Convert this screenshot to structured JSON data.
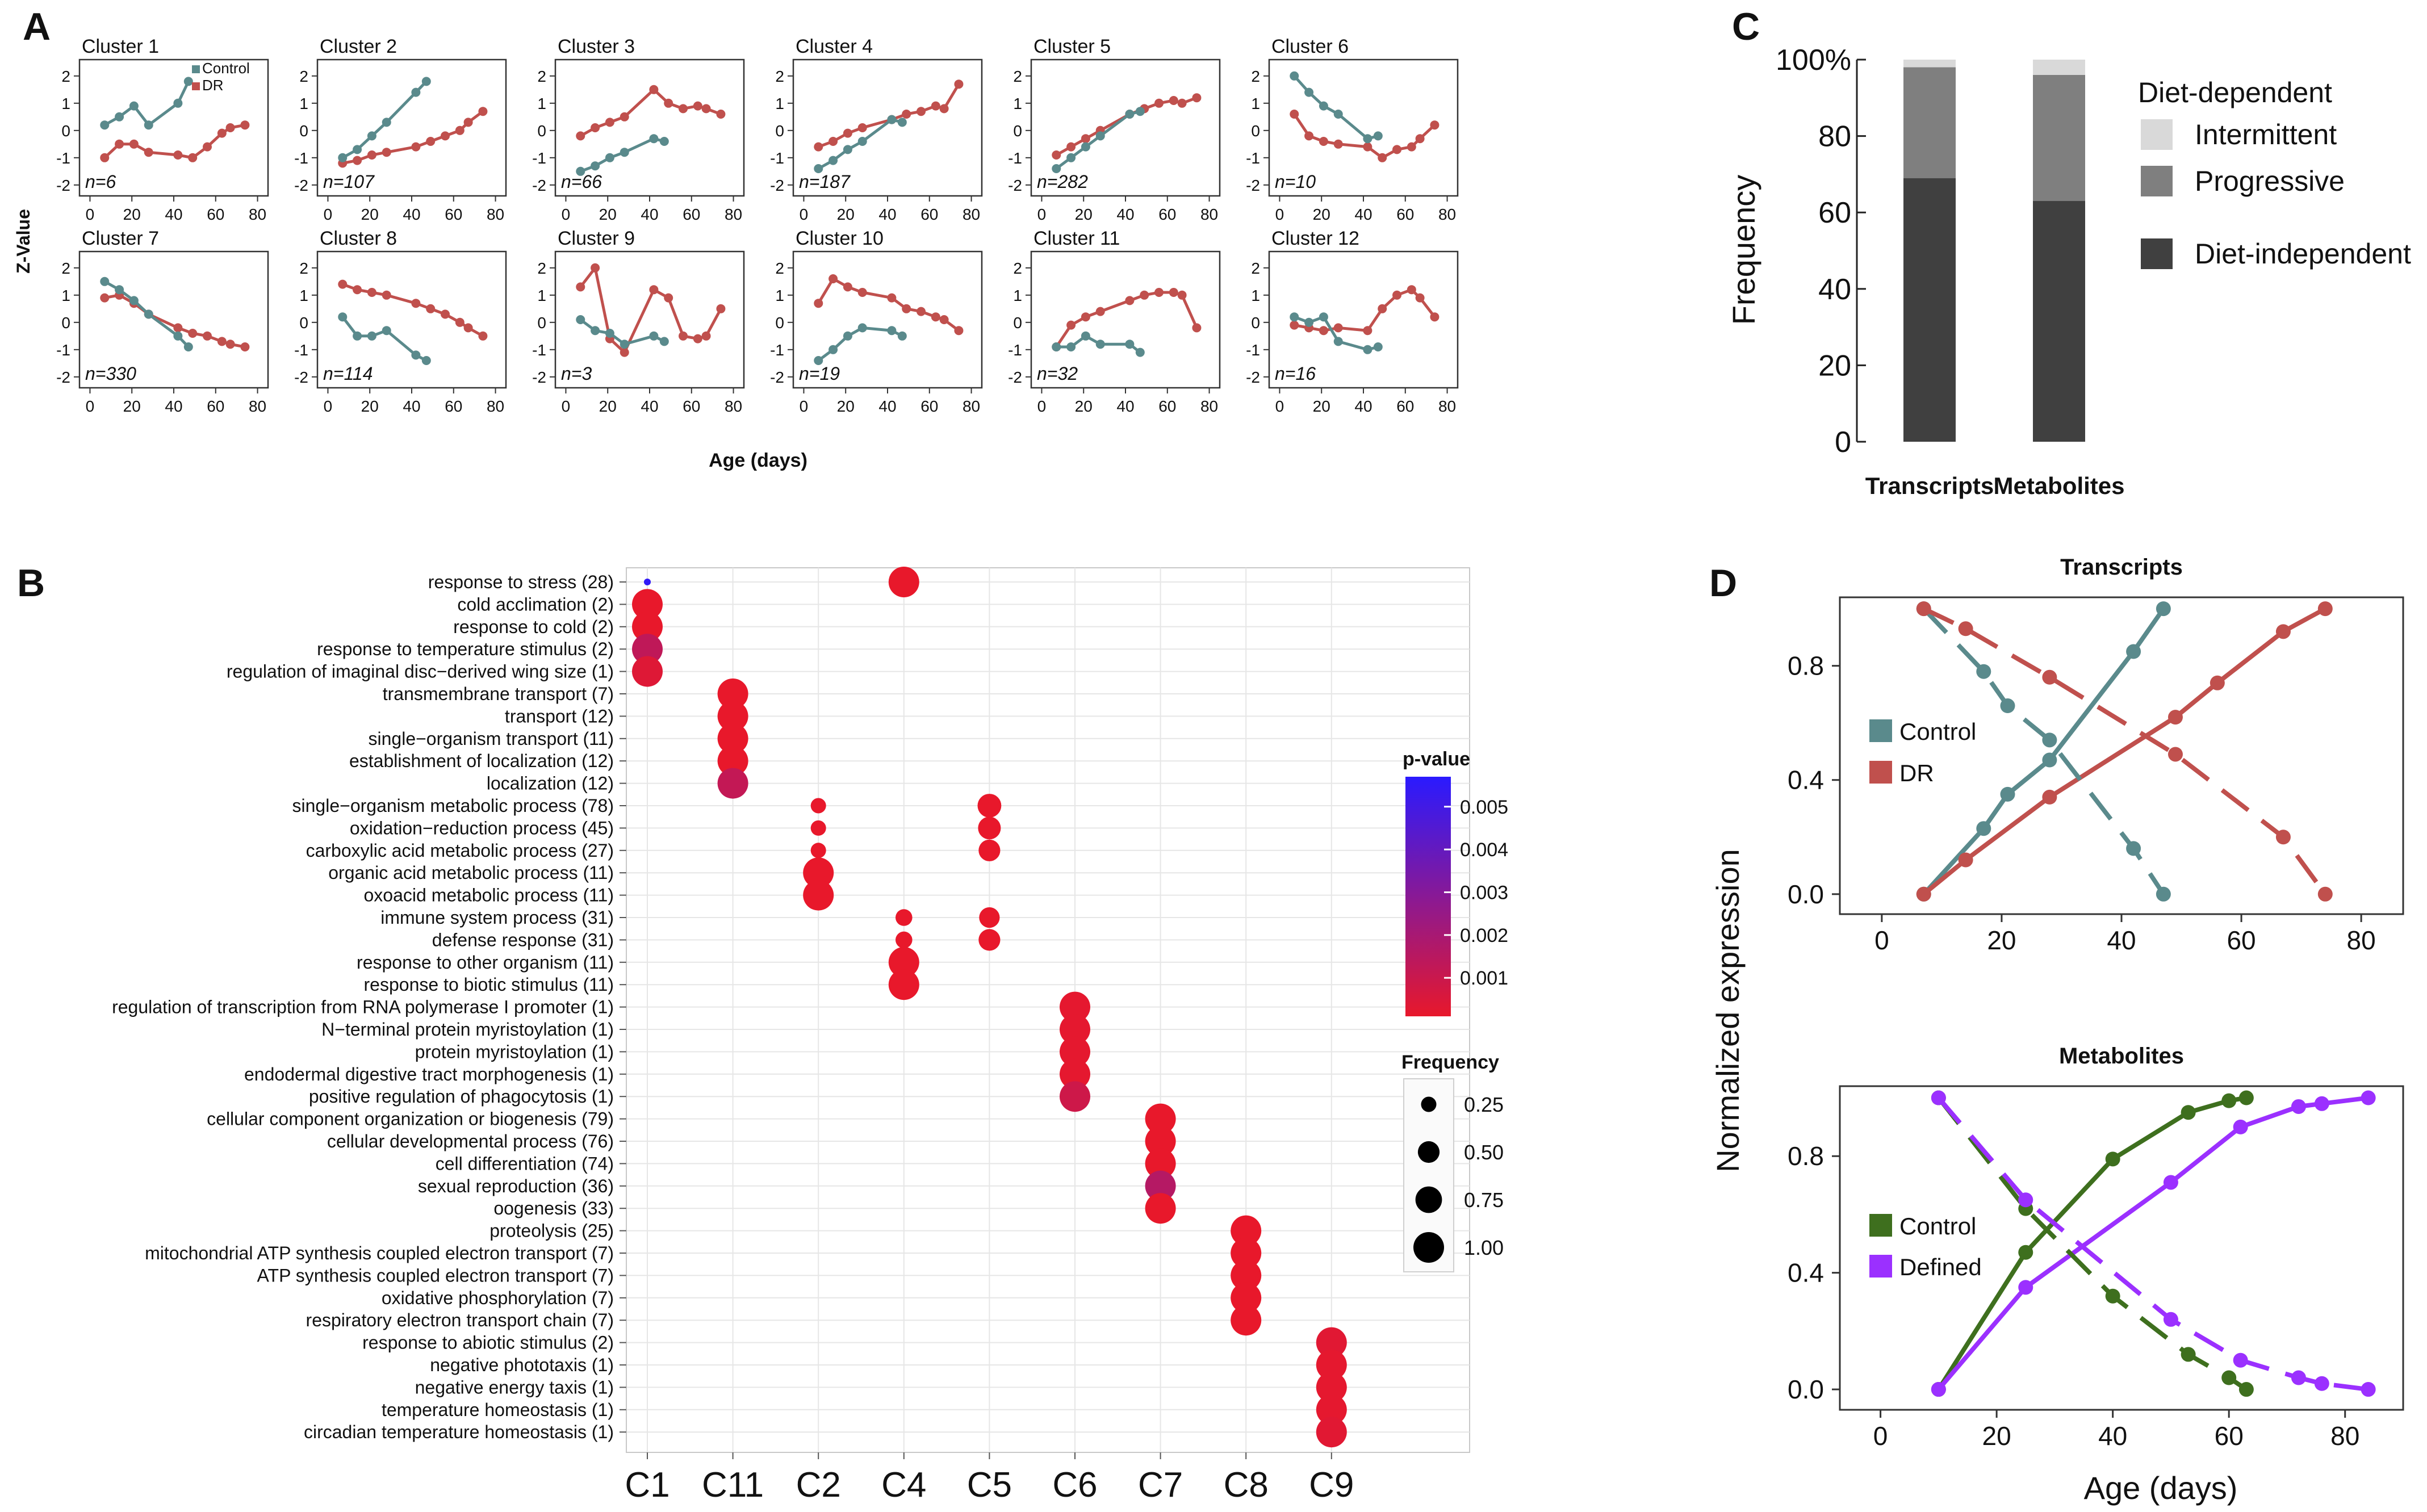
{
  "panel_labels": [
    "A",
    "B",
    "C",
    "D"
  ],
  "colors": {
    "control_teal": "#5a8a8c",
    "dr_red": "#c0504d",
    "control_green": "#3e6f1e",
    "defined_purple": "#9b30ff",
    "diet_independent": "#404040",
    "progressive": "#7f7f7f",
    "intermittent": "#d9d9d9",
    "bubble_red": "#e8182b",
    "bubble_blue": "#2a1aff"
  },
  "chart_data": [
    {
      "id": "A",
      "type": "line",
      "ylabel": "Z-Value",
      "xlabel": "Age (days)",
      "xlim": [
        -5,
        85
      ],
      "ylim": [
        -2.4,
        2.6
      ],
      "x_ticks": [
        0,
        20,
        40,
        60,
        80
      ],
      "y_ticks": [
        -2,
        -1,
        0,
        1,
        2
      ],
      "legend": [
        "Control",
        "DR"
      ],
      "control_x": [
        7,
        14,
        21,
        28,
        42,
        47
      ],
      "dr_x": [
        7,
        14,
        21,
        28,
        42,
        49,
        56,
        63,
        67,
        74
      ],
      "clusters": [
        {
          "title": "Cluster 1",
          "n": "n=6",
          "control": [
            0.2,
            0.5,
            0.9,
            0.2,
            1.0,
            1.8
          ],
          "dr": [
            -1.0,
            -0.5,
            -0.5,
            -0.8,
            -0.9,
            -1.0,
            -0.6,
            -0.1,
            0.1,
            0.2
          ]
        },
        {
          "title": "Cluster 2",
          "n": "n=107",
          "control": [
            -1.0,
            -0.7,
            -0.2,
            0.3,
            1.4,
            1.8
          ],
          "dr": [
            -1.2,
            -1.1,
            -0.9,
            -0.8,
            -0.6,
            -0.4,
            -0.2,
            0.0,
            0.3,
            0.7
          ]
        },
        {
          "title": "Cluster 3",
          "n": "n=66",
          "control": [
            -1.5,
            -1.3,
            -1.0,
            -0.8,
            -0.3,
            -0.4
          ],
          "dr": [
            -0.2,
            0.1,
            0.3,
            0.5,
            1.5,
            1.0,
            0.8,
            0.9,
            0.8,
            0.6
          ]
        },
        {
          "title": "Cluster 4",
          "n": "n=187",
          "control": [
            -1.4,
            -1.1,
            -0.7,
            -0.4,
            0.4,
            0.3
          ],
          "dr": [
            -0.6,
            -0.4,
            -0.1,
            0.1,
            0.4,
            0.6,
            0.7,
            0.9,
            0.8,
            1.7
          ]
        },
        {
          "title": "Cluster 5",
          "n": "n=282",
          "control": [
            -1.4,
            -1.0,
            -0.6,
            -0.2,
            0.6,
            0.7
          ],
          "dr": [
            -0.9,
            -0.6,
            -0.3,
            0.0,
            0.6,
            0.8,
            1.0,
            1.1,
            1.0,
            1.2
          ]
        },
        {
          "title": "Cluster 6",
          "n": "n=10",
          "control": [
            2.0,
            1.4,
            0.9,
            0.6,
            -0.3,
            -0.2
          ],
          "dr": [
            0.6,
            -0.2,
            -0.4,
            -0.5,
            -0.6,
            -1.0,
            -0.7,
            -0.6,
            -0.3,
            0.2
          ]
        },
        {
          "title": "Cluster 7",
          "n": "n=330",
          "control": [
            1.5,
            1.2,
            0.8,
            0.3,
            -0.5,
            -0.9
          ],
          "dr": [
            0.9,
            1.0,
            0.7,
            0.3,
            -0.2,
            -0.4,
            -0.5,
            -0.7,
            -0.8,
            -0.9
          ]
        },
        {
          "title": "Cluster 8",
          "n": "n=114",
          "control": [
            0.2,
            -0.5,
            -0.5,
            -0.3,
            -1.2,
            -1.4
          ],
          "dr": [
            1.4,
            1.2,
            1.1,
            1.0,
            0.7,
            0.5,
            0.3,
            0.0,
            -0.2,
            -0.5
          ]
        },
        {
          "title": "Cluster 9",
          "n": "n=3",
          "control": [
            0.1,
            -0.3,
            -0.4,
            -0.8,
            -0.5,
            -0.7
          ],
          "dr": [
            1.3,
            2.0,
            -0.6,
            -1.1,
            1.2,
            0.9,
            -0.5,
            -0.6,
            -0.5,
            0.5
          ]
        },
        {
          "title": "Cluster 10",
          "n": "n=19",
          "control": [
            -1.4,
            -1.0,
            -0.5,
            -0.2,
            -0.3,
            -0.5
          ],
          "dr": [
            0.7,
            1.6,
            1.3,
            1.1,
            0.9,
            0.5,
            0.4,
            0.2,
            0.1,
            -0.3
          ]
        },
        {
          "title": "Cluster 11",
          "n": "n=32",
          "control": [
            -0.9,
            -0.9,
            -0.5,
            -0.8,
            -0.8,
            -1.1
          ],
          "dr": [
            -0.9,
            -0.1,
            0.2,
            0.4,
            0.8,
            1.0,
            1.1,
            1.1,
            1.0,
            -0.2
          ]
        },
        {
          "title": "Cluster 12",
          "n": "n=16",
          "control": [
            0.2,
            0.0,
            0.2,
            -0.7,
            -1.0,
            -0.9
          ],
          "dr": [
            -0.1,
            -0.2,
            -0.3,
            -0.2,
            -0.3,
            0.5,
            1.0,
            1.2,
            0.9,
            0.2
          ]
        }
      ]
    },
    {
      "id": "B",
      "type": "scatter",
      "columns": [
        "C1",
        "C11",
        "C2",
        "C4",
        "C5",
        "C6",
        "C7",
        "C8",
        "C9"
      ],
      "terms": [
        "response to stress (28)",
        "cold acclimation (2)",
        "response to cold (2)",
        "response to temperature stimulus (2)",
        "regulation of imaginal disc−derived wing size (1)",
        "transmembrane transport (7)",
        "transport (12)",
        "single−organism transport (11)",
        "establishment of localization (12)",
        "localization (12)",
        "single−organism metabolic process (78)",
        "oxidation−reduction process (45)",
        "carboxylic acid metabolic process (27)",
        "organic acid metabolic process (11)",
        "oxoacid metabolic process (11)",
        "immune system process (31)",
        "defense response (31)",
        "response to other organism (11)",
        "response to biotic stimulus (11)",
        "regulation of transcription from RNA polymerase I promoter (1)",
        "N−terminal protein myristoylation (1)",
        "protein myristoylation (1)",
        "endodermal digestive tract morphogenesis (1)",
        "positive regulation of phagocytosis (1)",
        "cellular component organization or biogenesis (79)",
        "cellular developmental process (76)",
        "cell differentiation (74)",
        "sexual reproduction (36)",
        "oogenesis (33)",
        "proteolysis (25)",
        "mitochondrial ATP synthesis coupled electron transport (7)",
        "ATP synthesis coupled electron transport (7)",
        "oxidative phosphorylation (7)",
        "respiratory electron transport chain (7)",
        "response to abiotic stimulus (2)",
        "negative phototaxis (1)",
        "negative energy taxis (1)",
        "temperature homeostasis (1)",
        "circadian temperature homeostasis (1)"
      ],
      "points": [
        {
          "col": 0,
          "term": 0,
          "freq": 0.05,
          "p": 0.0055
        },
        {
          "col": 0,
          "term": 1,
          "freq": 1.0,
          "p": 0.0001
        },
        {
          "col": 0,
          "term": 2,
          "freq": 1.0,
          "p": 0.0001
        },
        {
          "col": 0,
          "term": 3,
          "freq": 1.0,
          "p": 0.0013
        },
        {
          "col": 0,
          "term": 4,
          "freq": 1.0,
          "p": 0.0004
        },
        {
          "col": 1,
          "term": 5,
          "freq": 1.0,
          "p": 0.0001
        },
        {
          "col": 1,
          "term": 6,
          "freq": 1.0,
          "p": 0.0001
        },
        {
          "col": 1,
          "term": 7,
          "freq": 1.0,
          "p": 0.0001
        },
        {
          "col": 1,
          "term": 8,
          "freq": 1.0,
          "p": 0.0001
        },
        {
          "col": 1,
          "term": 9,
          "freq": 1.0,
          "p": 0.0012
        },
        {
          "col": 2,
          "term": 10,
          "freq": 0.25,
          "p": 0.0001
        },
        {
          "col": 2,
          "term": 11,
          "freq": 0.25,
          "p": 0.0001
        },
        {
          "col": 2,
          "term": 12,
          "freq": 0.25,
          "p": 0.0001
        },
        {
          "col": 2,
          "term": 13,
          "freq": 1.0,
          "p": 0.0001
        },
        {
          "col": 2,
          "term": 14,
          "freq": 1.0,
          "p": 0.0001
        },
        {
          "col": 3,
          "term": 0,
          "freq": 1.0,
          "p": 0.0001
        },
        {
          "col": 3,
          "term": 15,
          "freq": 0.3,
          "p": 0.0001
        },
        {
          "col": 3,
          "term": 16,
          "freq": 0.3,
          "p": 0.0001
        },
        {
          "col": 3,
          "term": 17,
          "freq": 1.0,
          "p": 0.0001
        },
        {
          "col": 3,
          "term": 18,
          "freq": 1.0,
          "p": 0.0001
        },
        {
          "col": 4,
          "term": 10,
          "freq": 0.6,
          "p": 0.0001
        },
        {
          "col": 4,
          "term": 11,
          "freq": 0.55,
          "p": 0.0001
        },
        {
          "col": 4,
          "term": 12,
          "freq": 0.5,
          "p": 0.0001
        },
        {
          "col": 4,
          "term": 15,
          "freq": 0.45,
          "p": 0.0001
        },
        {
          "col": 4,
          "term": 16,
          "freq": 0.5,
          "p": 0.0001
        },
        {
          "col": 5,
          "term": 19,
          "freq": 1.0,
          "p": 0.0002
        },
        {
          "col": 5,
          "term": 20,
          "freq": 1.0,
          "p": 0.0002
        },
        {
          "col": 5,
          "term": 21,
          "freq": 1.0,
          "p": 0.0002
        },
        {
          "col": 5,
          "term": 22,
          "freq": 1.0,
          "p": 0.0002
        },
        {
          "col": 5,
          "term": 23,
          "freq": 1.0,
          "p": 0.0009
        },
        {
          "col": 6,
          "term": 24,
          "freq": 1.0,
          "p": 0.0001
        },
        {
          "col": 6,
          "term": 25,
          "freq": 1.0,
          "p": 0.0001
        },
        {
          "col": 6,
          "term": 26,
          "freq": 1.0,
          "p": 0.0001
        },
        {
          "col": 6,
          "term": 27,
          "freq": 1.0,
          "p": 0.0016
        },
        {
          "col": 6,
          "term": 28,
          "freq": 1.0,
          "p": 0.0001
        },
        {
          "col": 7,
          "term": 29,
          "freq": 1.0,
          "p": 0.0001
        },
        {
          "col": 7,
          "term": 30,
          "freq": 1.0,
          "p": 0.0001
        },
        {
          "col": 7,
          "term": 31,
          "freq": 1.0,
          "p": 0.0001
        },
        {
          "col": 7,
          "term": 32,
          "freq": 1.0,
          "p": 0.0001
        },
        {
          "col": 7,
          "term": 33,
          "freq": 1.0,
          "p": 0.0001
        },
        {
          "col": 8,
          "term": 34,
          "freq": 1.0,
          "p": 0.0003
        },
        {
          "col": 8,
          "term": 35,
          "freq": 1.0,
          "p": 0.0002
        },
        {
          "col": 8,
          "term": 36,
          "freq": 1.0,
          "p": 0.0002
        },
        {
          "col": 8,
          "term": 37,
          "freq": 1.0,
          "p": 0.0002
        },
        {
          "col": 8,
          "term": 38,
          "freq": 1.0,
          "p": 0.0003
        }
      ],
      "legend_pvalue": {
        "title": "p-value",
        "ticks": [
          0.005,
          0.004,
          0.003,
          0.002,
          0.001
        ],
        "tick_labels": [
          "0.005",
          "0.004",
          "0.003",
          "0.002",
          "0.001"
        ],
        "range": [
          0.0001,
          0.0057
        ]
      },
      "legend_frequency": {
        "title": "Frequency",
        "values": [
          0.25,
          0.5,
          0.75,
          1.0
        ],
        "labels": [
          "0.25",
          "0.50",
          "0.75",
          "1.00"
        ]
      }
    },
    {
      "id": "C",
      "type": "bar",
      "stacked": true,
      "ylabel": "Frequency",
      "categories": [
        "Transcripts",
        "Metabolites"
      ],
      "ylim": [
        0,
        100
      ],
      "y_ticks": [
        0,
        20,
        40,
        60,
        80,
        100
      ],
      "y_tick_labels": [
        "0",
        "20",
        "40",
        "60",
        "80",
        "100%"
      ],
      "legend_title": "Diet-dependent",
      "series": [
        {
          "name": "Diet-independent",
          "values": [
            69,
            63
          ]
        },
        {
          "name": "Progressive",
          "values": [
            29,
            33
          ]
        },
        {
          "name": "Intermittent",
          "values": [
            2,
            4
          ]
        }
      ],
      "legend_order": [
        "Intermittent",
        "Progressive",
        "Diet-independent"
      ]
    },
    {
      "id": "D",
      "type": "line",
      "ylabel": "Normalized expression",
      "xlabel": "Age (days)",
      "y_ticks": [
        0.0,
        0.4,
        0.8
      ],
      "y_tick_labels": [
        "0.0",
        "0.4",
        "0.8"
      ],
      "x_ticks": [
        0,
        20,
        40,
        60,
        80
      ],
      "subplots": [
        {
          "title": "Transcripts",
          "xlim": [
            -7,
            87
          ],
          "ylim": [
            -0.07,
            1.04
          ],
          "series": [
            {
              "name": "Control",
              "color_key": "control_teal",
              "dash": false,
              "x": [
                7,
                17,
                21,
                28,
                42,
                47
              ],
              "y": [
                0.0,
                0.23,
                0.35,
                0.47,
                0.85,
                1.0
              ]
            },
            {
              "name": "DR",
              "color_key": "dr_red",
              "dash": false,
              "x": [
                7,
                14,
                28,
                49,
                56,
                67,
                74
              ],
              "y": [
                0.0,
                0.12,
                0.34,
                0.62,
                0.74,
                0.92,
                1.0
              ]
            },
            {
              "name": "",
              "color_key": "control_teal",
              "dash": true,
              "x": [
                7,
                17,
                21,
                28,
                42,
                47
              ],
              "y": [
                1.0,
                0.78,
                0.66,
                0.54,
                0.16,
                0.0
              ]
            },
            {
              "name": "",
              "color_key": "dr_red",
              "dash": true,
              "x": [
                7,
                14,
                28,
                49,
                67,
                74
              ],
              "y": [
                1.0,
                0.93,
                0.76,
                0.49,
                0.2,
                0.0
              ]
            }
          ]
        },
        {
          "title": "Metabolites",
          "xlim": [
            -7,
            90
          ],
          "ylim": [
            -0.07,
            1.04
          ],
          "series": [
            {
              "name": "Control",
              "color_key": "control_green",
              "dash": false,
              "x": [
                10,
                25,
                40,
                53,
                60,
                63
              ],
              "y": [
                0.0,
                0.47,
                0.79,
                0.95,
                0.99,
                1.0
              ]
            },
            {
              "name": "Defined",
              "color_key": "defined_purple",
              "dash": false,
              "x": [
                10,
                25,
                50,
                62,
                72,
                76,
                84
              ],
              "y": [
                0.0,
                0.35,
                0.71,
                0.9,
                0.97,
                0.98,
                1.0
              ]
            },
            {
              "name": "",
              "color_key": "control_green",
              "dash": true,
              "x": [
                10,
                25,
                40,
                53,
                60,
                63
              ],
              "y": [
                1.0,
                0.62,
                0.32,
                0.12,
                0.04,
                0.0
              ]
            },
            {
              "name": "",
              "color_key": "defined_purple",
              "dash": true,
              "x": [
                10,
                25,
                50,
                62,
                72,
                76,
                84
              ],
              "y": [
                1.0,
                0.65,
                0.24,
                0.1,
                0.04,
                0.02,
                0.0
              ]
            }
          ]
        }
      ]
    }
  ]
}
